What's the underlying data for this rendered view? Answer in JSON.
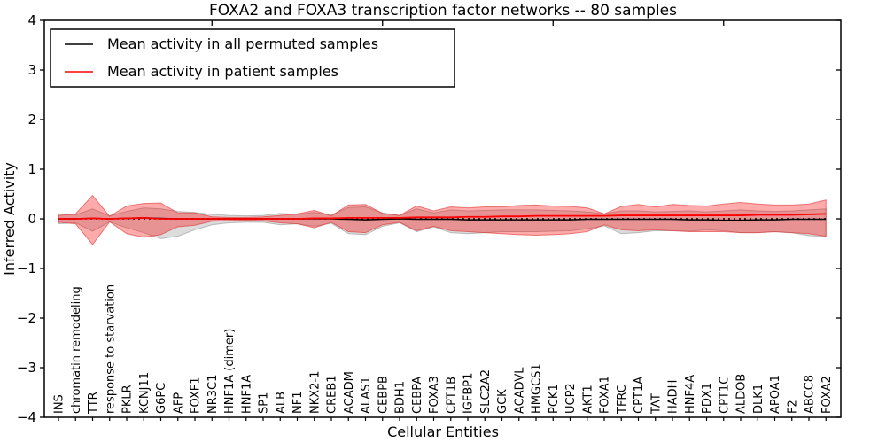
{
  "chart_data": {
    "type": "line",
    "title": "FOXA2 and FOXA3 transcription factor networks -- 80 samples",
    "xlabel": "Cellular Entities",
    "ylabel": "Inferred Activity",
    "ylim": [
      -4,
      4
    ],
    "yticks": [
      4,
      3,
      2,
      1,
      0,
      -1,
      -2,
      -3,
      -4
    ],
    "major_xtick_indices": [
      9,
      19,
      29,
      39
    ],
    "grid": false,
    "legend_position": "upper left",
    "background_color": "#ffffff",
    "frame_color": "#000000",
    "zero_line": {
      "y": 0,
      "style": "dotted",
      "color": "#000000"
    },
    "categories": [
      "INS",
      "chromatin remodeling",
      "TTR",
      "response to starvation",
      "PKLR",
      "KCNJ11",
      "G6PC",
      "AFP",
      "FOXF1",
      "NR3C1",
      "HNF1A (dimer)",
      "HNF1A",
      "SP1",
      "ALB",
      "NF1",
      "NKX2-1",
      "CREB1",
      "ACADM",
      "ALAS1",
      "CEBPB",
      "BDH1",
      "CEBPA",
      "FOXA3",
      "CPT1B",
      "IGFBP1",
      "SLC2A2",
      "GCK",
      "ACADVL",
      "HMGCS1",
      "PCK1",
      "UCP2",
      "AKT1",
      "FOXA1",
      "TFRC",
      "CPT1A",
      "TAT",
      "HADH",
      "HNF4A",
      "PDX1",
      "CPT1C",
      "ALDOB",
      "DLK1",
      "APOA1",
      "F2",
      "ABCC8",
      "FOXA2"
    ],
    "series": [
      {
        "name": "Mean activity in all permuted samples",
        "color": "#000000",
        "values": [
          0.0,
          0.0,
          0.01,
          0.0,
          0.01,
          0.02,
          0.01,
          0.0,
          0.0,
          0.0,
          0.0,
          0.0,
          0.0,
          0.0,
          0.0,
          0.0,
          0.0,
          -0.01,
          -0.02,
          -0.01,
          0.0,
          -0.01,
          -0.01,
          -0.01,
          -0.02,
          -0.02,
          -0.02,
          -0.02,
          -0.02,
          -0.02,
          -0.02,
          -0.01,
          -0.01,
          -0.01,
          -0.01,
          -0.01,
          -0.01,
          -0.02,
          -0.02,
          -0.03,
          -0.03,
          -0.02,
          -0.02,
          -0.01,
          -0.01,
          -0.01
        ]
      },
      {
        "name": "Mean activity in patient samples",
        "color": "#ff0000",
        "values": [
          0.0,
          0.0,
          0.01,
          0.0,
          0.01,
          0.02,
          0.0,
          0.0,
          0.0,
          0.0,
          0.0,
          0.0,
          0.0,
          0.0,
          0.0,
          0.01,
          0.01,
          0.02,
          0.02,
          0.02,
          0.02,
          0.03,
          0.03,
          0.03,
          0.04,
          0.04,
          0.05,
          0.05,
          0.06,
          0.06,
          0.06,
          0.06,
          0.06,
          0.07,
          0.07,
          0.07,
          0.07,
          0.07,
          0.07,
          0.07,
          0.07,
          0.08,
          0.08,
          0.08,
          0.09,
          0.1
        ]
      }
    ],
    "bands": [
      {
        "name": "permuted samples std band",
        "fill": "#828282",
        "fill_opacity": 0.28,
        "edge": "#787878",
        "edge_opacity": 0.45,
        "upper": [
          0.1,
          0.08,
          0.2,
          0.06,
          0.15,
          0.22,
          0.2,
          0.15,
          0.13,
          0.09,
          0.07,
          0.06,
          0.07,
          0.11,
          0.09,
          0.13,
          0.08,
          0.23,
          0.24,
          0.12,
          0.07,
          0.2,
          0.12,
          0.18,
          0.16,
          0.17,
          0.18,
          0.18,
          0.18,
          0.17,
          0.16,
          0.14,
          0.1,
          0.16,
          0.16,
          0.14,
          0.15,
          0.16,
          0.14,
          0.16,
          0.18,
          0.16,
          0.15,
          0.16,
          0.18,
          0.2
        ],
        "lower": [
          -0.1,
          -0.08,
          -0.25,
          -0.06,
          -0.18,
          -0.28,
          -0.4,
          -0.35,
          -0.22,
          -0.12,
          -0.08,
          -0.07,
          -0.07,
          -0.12,
          -0.1,
          -0.15,
          -0.09,
          -0.3,
          -0.32,
          -0.15,
          -0.08,
          -0.26,
          -0.16,
          -0.28,
          -0.3,
          -0.28,
          -0.26,
          -0.26,
          -0.26,
          -0.25,
          -0.24,
          -0.2,
          -0.14,
          -0.3,
          -0.28,
          -0.24,
          -0.24,
          -0.25,
          -0.22,
          -0.24,
          -0.28,
          -0.28,
          -0.26,
          -0.28,
          -0.34,
          -0.36
        ]
      },
      {
        "name": "patient samples std band",
        "fill": "#ff0000",
        "fill_opacity": 0.33,
        "edge": "#e03030",
        "edge_opacity": 0.6,
        "upper": [
          0.07,
          0.1,
          0.47,
          0.05,
          0.26,
          0.31,
          0.32,
          0.12,
          0.12,
          0.04,
          0.03,
          0.03,
          0.04,
          0.07,
          0.1,
          0.17,
          0.06,
          0.28,
          0.29,
          0.11,
          0.07,
          0.26,
          0.16,
          0.24,
          0.22,
          0.24,
          0.24,
          0.27,
          0.28,
          0.26,
          0.25,
          0.22,
          0.1,
          0.25,
          0.29,
          0.24,
          0.29,
          0.27,
          0.26,
          0.3,
          0.33,
          0.3,
          0.28,
          0.28,
          0.3,
          0.38
        ],
        "lower": [
          -0.07,
          -0.1,
          -0.52,
          -0.06,
          -0.3,
          -0.37,
          -0.32,
          -0.16,
          -0.13,
          -0.05,
          -0.04,
          -0.03,
          -0.04,
          -0.08,
          -0.1,
          -0.18,
          -0.07,
          -0.26,
          -0.28,
          -0.12,
          -0.07,
          -0.24,
          -0.15,
          -0.24,
          -0.26,
          -0.28,
          -0.3,
          -0.32,
          -0.33,
          -0.32,
          -0.3,
          -0.26,
          -0.12,
          -0.22,
          -0.24,
          -0.22,
          -0.24,
          -0.26,
          -0.26,
          -0.26,
          -0.28,
          -0.28,
          -0.26,
          -0.28,
          -0.3,
          -0.35
        ]
      }
    ]
  }
}
